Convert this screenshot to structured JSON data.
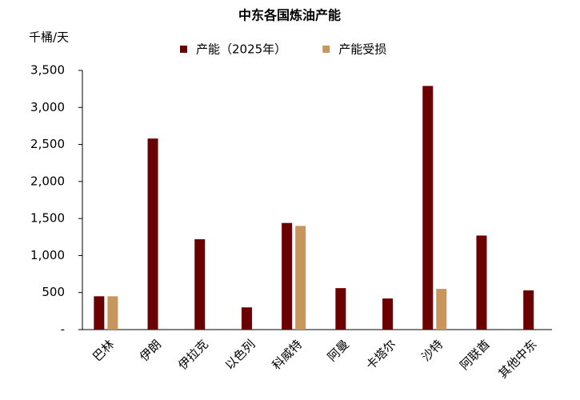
{
  "chart_data": {
    "type": "bar",
    "title": "中东各国炼油产能",
    "y_label": "千桶/天",
    "categories": [
      "巴林",
      "伊朗",
      "伊拉克",
      "以色列",
      "科威特",
      "阿曼",
      "卡塔尔",
      "沙特",
      "阿联酋",
      "其他中东"
    ],
    "series": [
      {
        "name": "产能（2025年）",
        "color": "#6b0000",
        "values": [
          450,
          2580,
          1220,
          300,
          1440,
          560,
          420,
          3290,
          1270,
          530
        ]
      },
      {
        "name": "产能受损",
        "color": "#c8965a",
        "values": [
          450,
          null,
          null,
          null,
          1400,
          null,
          null,
          550,
          null,
          null
        ]
      }
    ],
    "ylim": [
      0,
      3500
    ],
    "yticks": [
      {
        "value": 0,
        "label": "-"
      },
      500,
      {
        "value": 1000,
        "label": "1,000"
      },
      {
        "value": 1500,
        "label": "1,500"
      },
      {
        "value": 2000,
        "label": "2,000"
      },
      {
        "value": 2500,
        "label": "2,500"
      },
      {
        "value": 3000,
        "label": "3,000"
      },
      {
        "value": 3500,
        "label": "3,500"
      }
    ],
    "grid": false,
    "legend": "top"
  }
}
